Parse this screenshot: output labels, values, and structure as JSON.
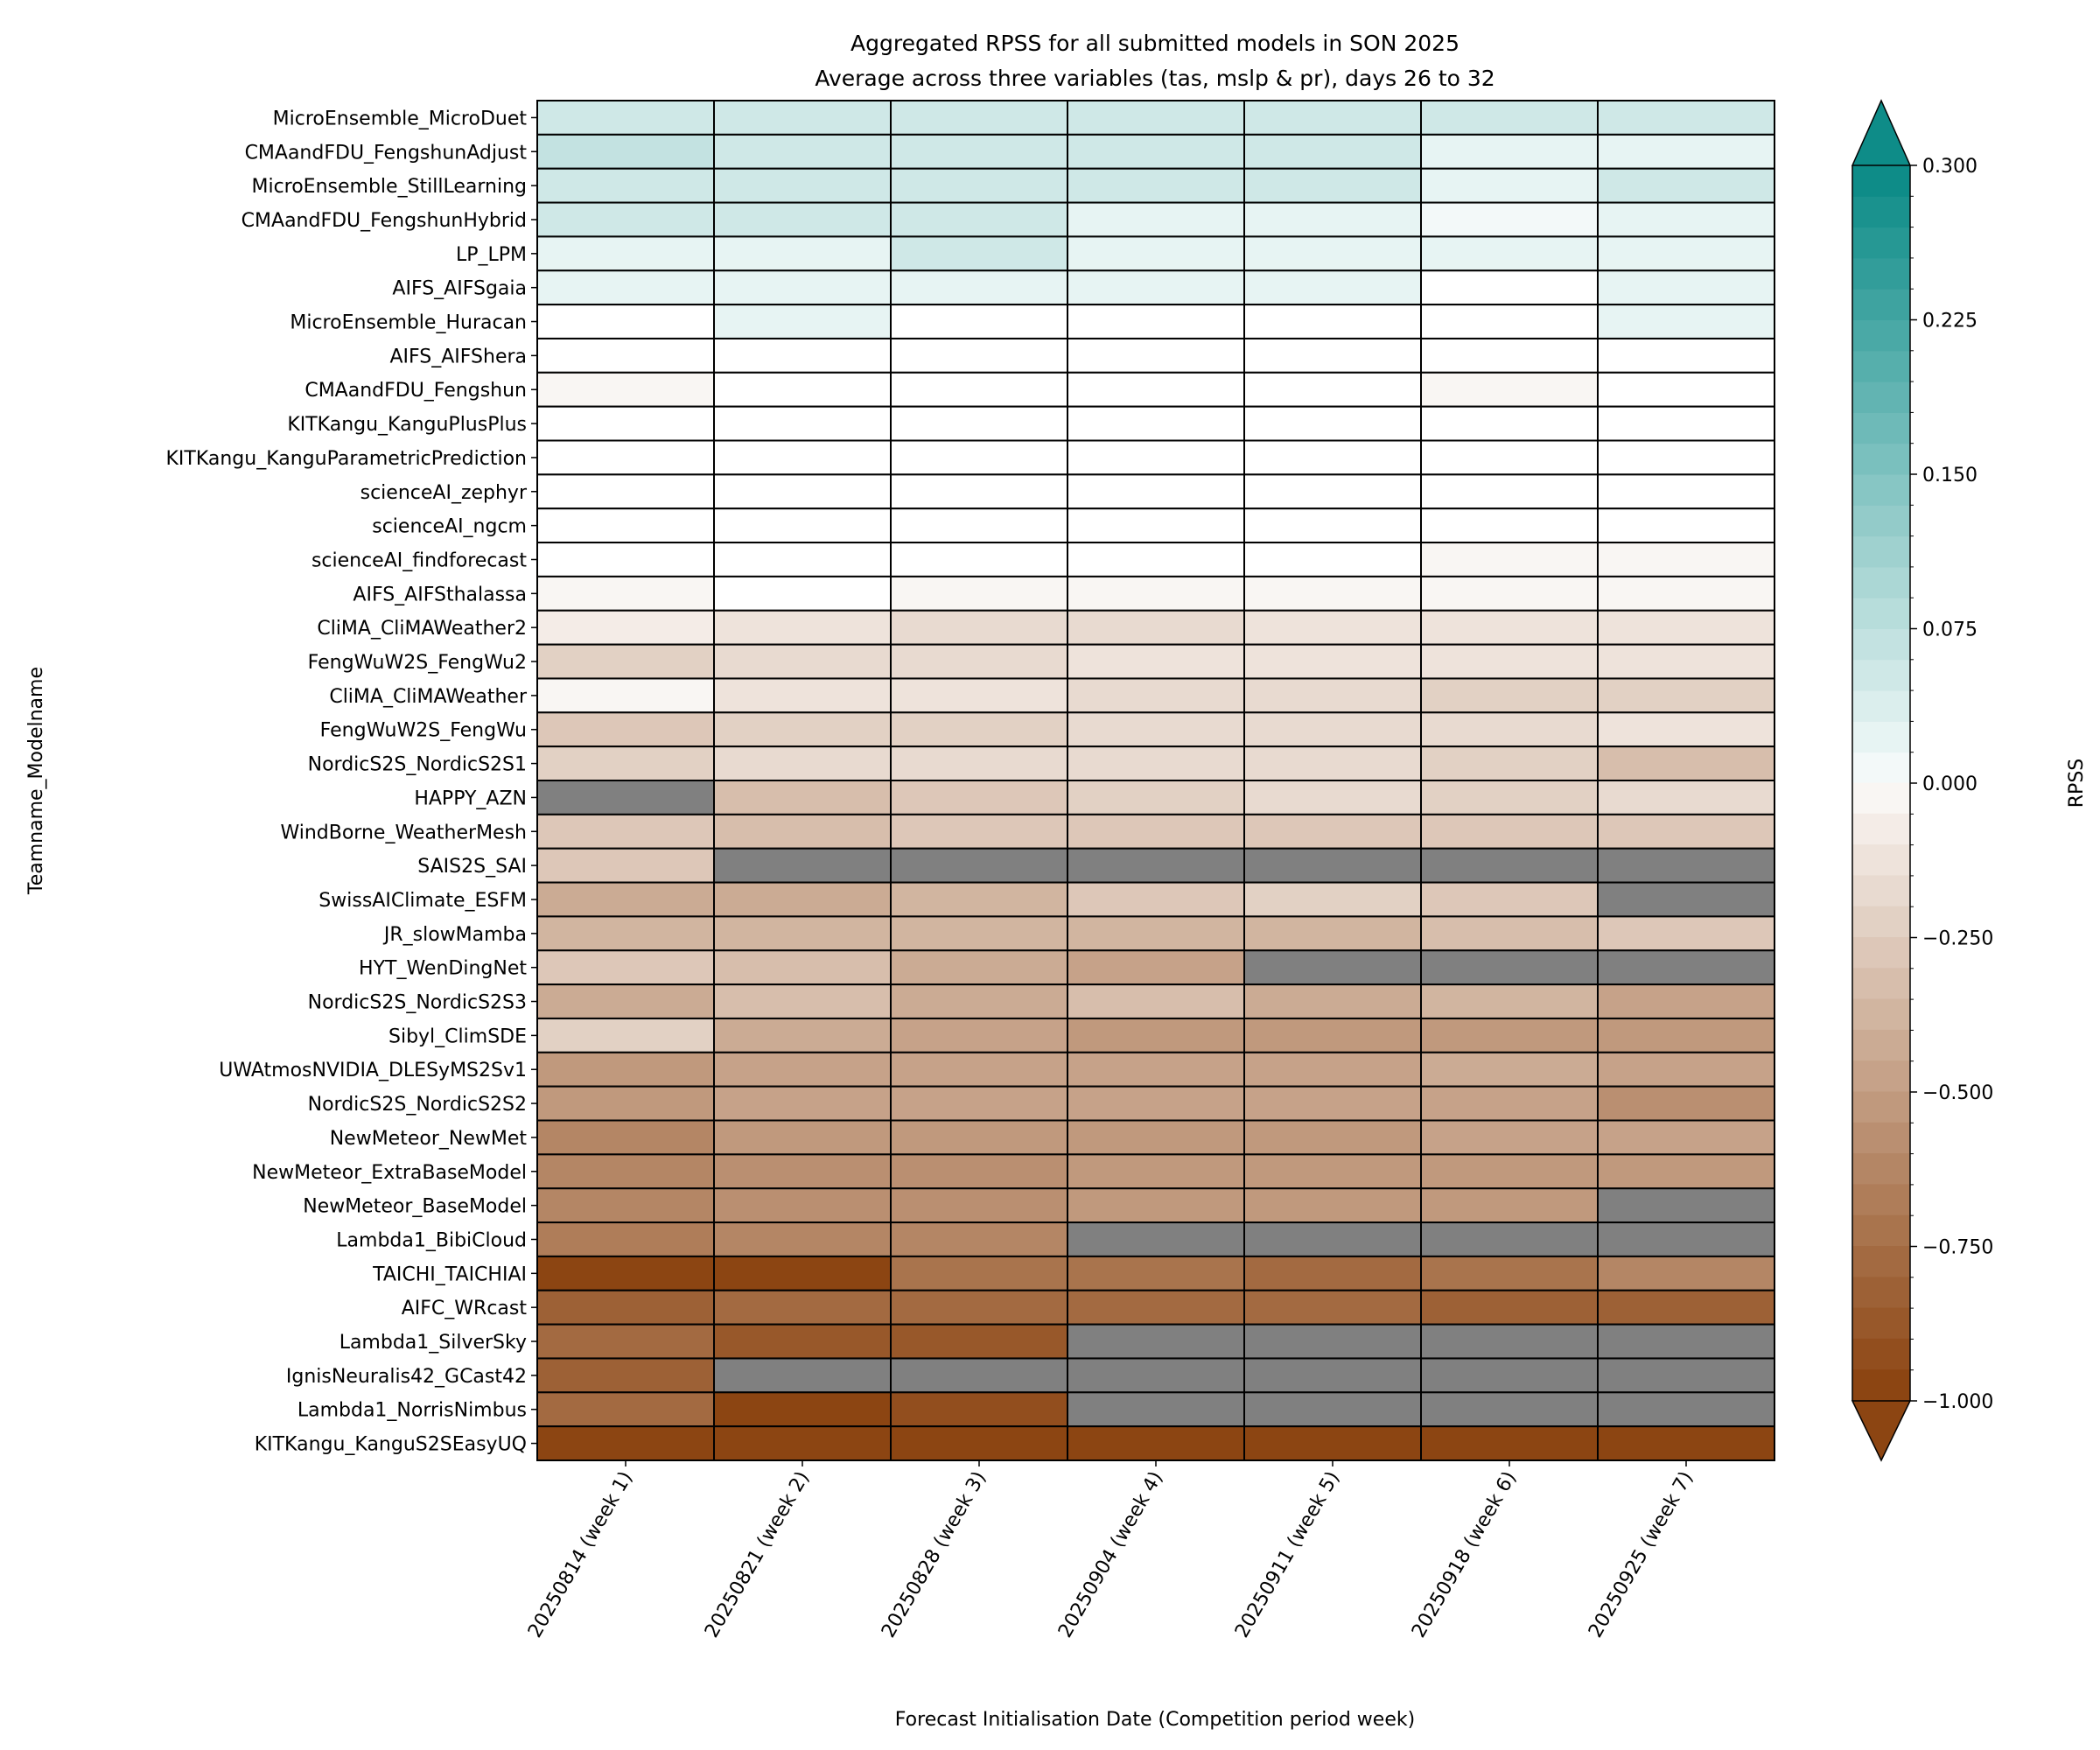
{
  "chart_data": {
    "type": "heatmap",
    "title": "Aggregated RPSS for all submitted models in SON 2025",
    "subtitle": "Average across three variables (tas, mslp & pr), days 26 to 32",
    "xlabel": "Forecast Initialisation Date (Competition period week)",
    "ylabel": "Teamname_Modelname",
    "colorbar_label": "RPSS",
    "colorbar_ticks": [
      0.3,
      0.225,
      0.15,
      0.075,
      0.0,
      -0.25,
      -0.5,
      -0.75,
      -1.0
    ],
    "colorbar_tick_labels": [
      "0.300",
      "0.225",
      "0.150",
      "0.075",
      "0.000",
      "−0.250",
      "−0.500",
      "−0.750",
      "−1.000"
    ],
    "vmin": -1.0,
    "vmax": 0.3,
    "colors": {
      "min": "#8c4512",
      "zero": "#ffffff",
      "max": "#0e8c88",
      "missing": "#808080"
    },
    "columns": [
      "20250814 (week 1)",
      "20250821 (week 2)",
      "20250828 (week 3)",
      "20250904 (week 4)",
      "20250911 (week 5)",
      "20250918 (week 6)",
      "20250925 (week 7)"
    ],
    "rows": [
      {
        "name": "MicroEnsemble_MicroDuet",
        "values": [
          0.05,
          0.05,
          0.05,
          0.05,
          0.05,
          0.05,
          0.05
        ]
      },
      {
        "name": "CMAandFDU_FengshunAdjust",
        "values": [
          0.07,
          0.05,
          0.05,
          0.05,
          0.05,
          0.03,
          0.03
        ]
      },
      {
        "name": "MicroEnsemble_StillLearning",
        "values": [
          0.05,
          0.05,
          0.05,
          0.05,
          0.05,
          0.03,
          0.05
        ]
      },
      {
        "name": "CMAandFDU_FengshunHybrid",
        "values": [
          0.05,
          0.05,
          0.05,
          0.03,
          0.03,
          0.01,
          0.03
        ]
      },
      {
        "name": "LP_LPM",
        "values": [
          0.03,
          0.03,
          0.05,
          0.02,
          0.02,
          0.02,
          0.02
        ]
      },
      {
        "name": "AIFS_AIFSgaia",
        "values": [
          0.02,
          0.02,
          0.02,
          0.02,
          0.02,
          0.0,
          0.02
        ]
      },
      {
        "name": "MicroEnsemble_Huracan",
        "values": [
          0.0,
          0.02,
          0.0,
          0.0,
          0.0,
          0.0,
          0.02
        ]
      },
      {
        "name": "AIFS_AIFShera",
        "values": [
          0.0,
          0.0,
          0.0,
          0.0,
          0.0,
          0.0,
          0.0
        ]
      },
      {
        "name": "CMAandFDU_Fengshun",
        "values": [
          -0.02,
          0.0,
          0.0,
          0.0,
          0.0,
          -0.02,
          0.0
        ]
      },
      {
        "name": "KITKangu_KanguPlusPlus",
        "values": [
          0.0,
          0.0,
          0.0,
          0.0,
          0.0,
          0.0,
          0.0
        ]
      },
      {
        "name": "KITKangu_KanguParametricPrediction",
        "values": [
          0.0,
          0.0,
          0.0,
          0.0,
          0.0,
          0.0,
          0.0
        ]
      },
      {
        "name": "scienceAI_zephyr",
        "values": [
          0.0,
          0.0,
          0.0,
          0.0,
          0.0,
          0.0,
          0.0
        ]
      },
      {
        "name": "scienceAI_ngcm",
        "values": [
          0.0,
          0.0,
          0.0,
          0.0,
          0.0,
          0.0,
          0.0
        ]
      },
      {
        "name": "scienceAI_findforecast",
        "values": [
          0.0,
          0.0,
          0.0,
          0.0,
          0.0,
          -0.02,
          -0.02
        ]
      },
      {
        "name": "AIFS_AIFSthalassa",
        "values": [
          -0.02,
          0.0,
          -0.02,
          -0.02,
          -0.02,
          -0.02,
          -0.02
        ]
      },
      {
        "name": "CliMA_CliMAWeather2",
        "values": [
          -0.1,
          -0.15,
          -0.17,
          -0.17,
          -0.15,
          -0.15,
          -0.12
        ]
      },
      {
        "name": "FengWuW2S_FengWu2",
        "values": [
          -0.22,
          -0.2,
          -0.2,
          -0.15,
          -0.15,
          -0.12,
          -0.12
        ]
      },
      {
        "name": "CliMA_CliMAWeather",
        "values": [
          -0.05,
          -0.12,
          -0.12,
          -0.17,
          -0.2,
          -0.25,
          -0.25
        ]
      },
      {
        "name": "FengWuW2S_FengWu",
        "values": [
          -0.3,
          -0.22,
          -0.22,
          -0.2,
          -0.2,
          -0.2,
          -0.15
        ]
      },
      {
        "name": "NordicS2S_NordicS2S1",
        "values": [
          -0.25,
          -0.17,
          -0.17,
          -0.2,
          -0.2,
          -0.22,
          -0.32
        ]
      },
      {
        "name": "HAPPY_AZN",
        "values": [
          null,
          -0.32,
          -0.27,
          -0.25,
          -0.2,
          -0.22,
          -0.2
        ]
      },
      {
        "name": "WindBorne_WeatherMesh",
        "values": [
          -0.27,
          -0.32,
          -0.3,
          -0.27,
          -0.27,
          -0.27,
          -0.27
        ]
      },
      {
        "name": "SAIS2S_SAI",
        "values": [
          -0.3,
          null,
          null,
          null,
          null,
          null,
          null
        ]
      },
      {
        "name": "SwissAIClimate_ESFM",
        "values": [
          -0.42,
          -0.42,
          -0.37,
          -0.3,
          -0.25,
          -0.27,
          null
        ]
      },
      {
        "name": "JR_slowMamba",
        "values": [
          -0.4,
          -0.37,
          -0.37,
          -0.37,
          -0.4,
          -0.35,
          -0.3
        ]
      },
      {
        "name": "HYT_WenDingNet",
        "values": [
          -0.3,
          -0.35,
          -0.42,
          -0.5,
          null,
          null,
          null
        ]
      },
      {
        "name": "NordicS2S_NordicS2S3",
        "values": [
          -0.45,
          -0.35,
          -0.42,
          -0.35,
          -0.45,
          -0.37,
          -0.5
        ]
      },
      {
        "name": "Sibyl_ClimSDE",
        "values": [
          -0.25,
          -0.45,
          -0.5,
          -0.55,
          -0.55,
          -0.55,
          -0.55
        ]
      },
      {
        "name": "UWAtmosNVIDIA_DLESyMS2Sv1",
        "values": [
          -0.52,
          -0.47,
          -0.47,
          -0.47,
          -0.5,
          -0.45,
          -0.5
        ]
      },
      {
        "name": "NordicS2S_NordicS2S2",
        "values": [
          -0.55,
          -0.5,
          -0.5,
          -0.47,
          -0.5,
          -0.5,
          -0.6
        ]
      },
      {
        "name": "NewMeteor_NewMet",
        "values": [
          -0.65,
          -0.55,
          -0.55,
          -0.55,
          -0.55,
          -0.5,
          -0.47
        ]
      },
      {
        "name": "NewMeteor_ExtraBaseModel",
        "values": [
          -0.65,
          -0.6,
          -0.57,
          -0.55,
          -0.55,
          -0.55,
          -0.55
        ]
      },
      {
        "name": "NewMeteor_BaseModel",
        "values": [
          -0.65,
          -0.6,
          -0.6,
          -0.55,
          -0.55,
          -0.55,
          null
        ]
      },
      {
        "name": "Lambda1_BibiCloud",
        "values": [
          -0.67,
          -0.65,
          -0.65,
          null,
          null,
          null,
          null
        ]
      },
      {
        "name": "TAICHI_TAICHIAI",
        "values": [
          -1.0,
          -1.0,
          -0.75,
          -0.75,
          -0.77,
          -0.72,
          -0.65
        ]
      },
      {
        "name": "AIFC_WRcast",
        "values": [
          -0.85,
          -0.8,
          -0.8,
          -0.8,
          -0.8,
          -0.82,
          -0.85
        ]
      },
      {
        "name": "Lambda1_SilverSky",
        "values": [
          -0.77,
          -0.9,
          -0.88,
          null,
          null,
          null,
          null
        ]
      },
      {
        "name": "IgnisNeuralis42_GCast42",
        "values": [
          -0.82,
          null,
          null,
          null,
          null,
          null,
          null
        ]
      },
      {
        "name": "Lambda1_NorrisNimbus",
        "values": [
          -0.8,
          -0.97,
          -0.95,
          null,
          null,
          null,
          null
        ]
      },
      {
        "name": "KITKangu_KanguS2SEasyUQ",
        "values": [
          -0.97,
          -0.97,
          -0.97,
          -0.97,
          -0.97,
          -0.97,
          -0.97
        ]
      }
    ]
  }
}
